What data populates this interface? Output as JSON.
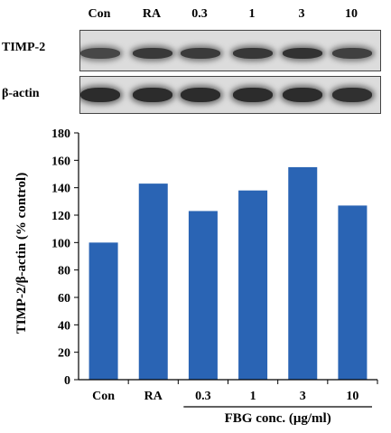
{
  "blot": {
    "lanes": [
      "Con",
      "RA",
      "0.3",
      "1",
      "3",
      "10"
    ],
    "rows": [
      {
        "label": "TIMP-2",
        "intensity": [
          0.55,
          0.7,
          0.68,
          0.72,
          0.78,
          0.62
        ]
      },
      {
        "label": "β-actin",
        "intensity": [
          0.85,
          0.85,
          0.85,
          0.85,
          0.85,
          0.8
        ]
      }
    ]
  },
  "chart_data": {
    "type": "bar",
    "categories": [
      "Con",
      "RA",
      "0.3",
      "1",
      "3",
      "10"
    ],
    "values": [
      100,
      143,
      123,
      138,
      155,
      127
    ],
    "title": "",
    "xlabel": "FBG conc. (μg/ml)",
    "ylabel": "TIMP-2/β-actin (% control)",
    "ylim": [
      0,
      180
    ],
    "yticks": [
      0,
      20,
      40,
      60,
      80,
      100,
      120,
      140,
      160,
      180
    ],
    "grid": false,
    "bar_color": "#2a64b4",
    "xlabel_group": [
      "0.3",
      "1",
      "3",
      "10"
    ]
  }
}
